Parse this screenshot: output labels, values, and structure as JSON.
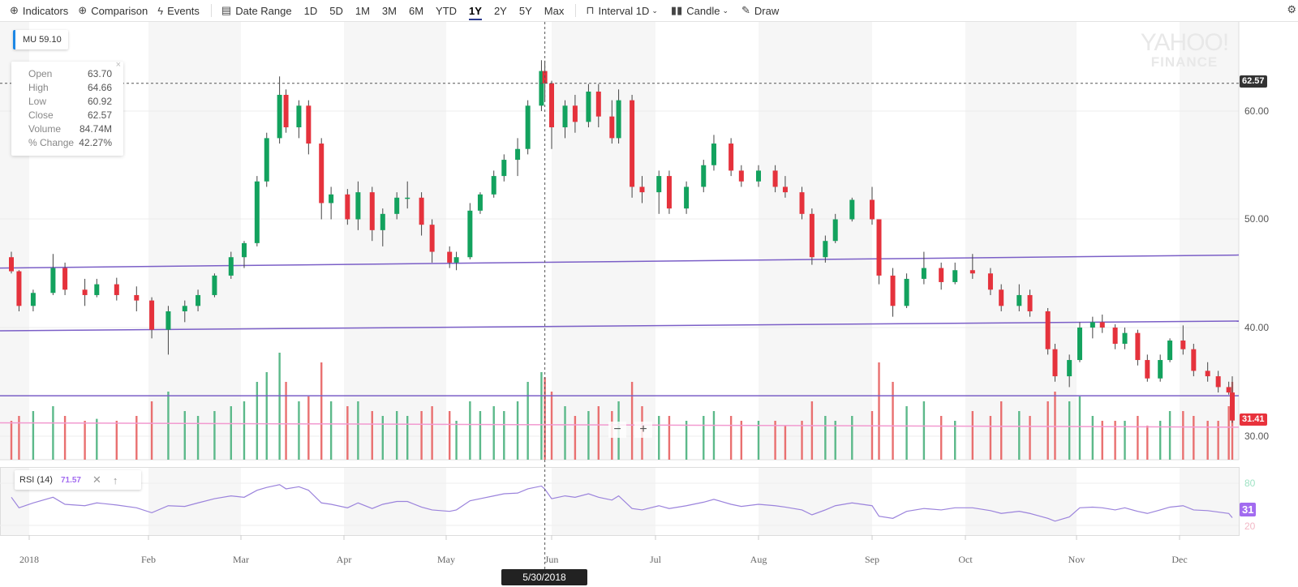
{
  "toolbar": {
    "indicators": "Indicators",
    "comparison": "Comparison",
    "events": "Events",
    "date_range": "Date Range",
    "ranges": [
      "1D",
      "5D",
      "1M",
      "3M",
      "6M",
      "YTD",
      "1Y",
      "2Y",
      "5Y",
      "Max"
    ],
    "active_range": "1Y",
    "interval_label": "Interval",
    "interval_value": "1D",
    "chart_type": "Candle",
    "draw": "Draw"
  },
  "ticker": {
    "symbol": "MU",
    "price": "59.10"
  },
  "tooltip": {
    "rows": [
      {
        "k": "Open",
        "v": "63.70"
      },
      {
        "k": "High",
        "v": "64.66"
      },
      {
        "k": "Low",
        "v": "60.92"
      },
      {
        "k": "Close",
        "v": "62.57"
      },
      {
        "k": "Volume",
        "v": "84.74M"
      },
      {
        "k": "% Change",
        "v": "42.27%"
      }
    ],
    "close": "×"
  },
  "watermark": {
    "line1": "YAHOO!",
    "line2": "FINANCE"
  },
  "badges": {
    "crosshair_price": "62.57",
    "current_price": "31.41",
    "rsi_value": "31"
  },
  "rsi_panel": {
    "label": "RSI (14)",
    "value": "71.57",
    "close": "✕",
    "move": "↑",
    "levels": [
      "80",
      "20"
    ]
  },
  "crosshair_date": "5/30/2018",
  "zoom": {
    "minus": "−",
    "plus": "+"
  },
  "colors": {
    "up": "#13a25e",
    "down": "#e5323c",
    "trendline": "#7b5fc7",
    "pink_line": "#f29ad0",
    "rsi_line": "#9b83dc",
    "accent": "#1e88e5"
  },
  "chart_data": {
    "type": "candlestick",
    "symbol": "MU",
    "y_ticks": [
      "60.00",
      "50.00",
      "40.00",
      "30.00"
    ],
    "ylim": [
      28,
      66
    ],
    "x_ticks": [
      "2018",
      "Feb",
      "Mar",
      "Apr",
      "May",
      "Jun",
      "Jul",
      "Aug",
      "Sep",
      "Oct",
      "Nov",
      "Dec"
    ],
    "grid": true,
    "columns": [
      "date",
      "open",
      "high",
      "low",
      "close",
      "volume_m",
      "rsi"
    ],
    "candles": [
      [
        "2017-12-26",
        46.5,
        47,
        45,
        45.2,
        40,
        60
      ],
      [
        "2017-12-29",
        45.2,
        45.3,
        41.5,
        42,
        45,
        45
      ],
      [
        "2018-01-03",
        42,
        43.5,
        41.5,
        43.2,
        50,
        52
      ],
      [
        "2018-01-08",
        43.2,
        46.8,
        43,
        45.5,
        55,
        60
      ],
      [
        "2018-01-11",
        45.5,
        46,
        43,
        43.5,
        45,
        50
      ],
      [
        "2018-01-16",
        43.5,
        44.5,
        42,
        43,
        40,
        48
      ],
      [
        "2018-01-19",
        43,
        44.5,
        42.8,
        44,
        42,
        52
      ],
      [
        "2018-01-24",
        44,
        44.6,
        42.5,
        43,
        40,
        49
      ],
      [
        "2018-01-29",
        43,
        43.8,
        41.5,
        42.5,
        45,
        45
      ],
      [
        "2018-02-02",
        42.5,
        42.8,
        39,
        39.8,
        60,
        38
      ],
      [
        "2018-02-07",
        39.8,
        42,
        37.5,
        41.5,
        70,
        48
      ],
      [
        "2018-02-12",
        41.5,
        42.5,
        40.5,
        42,
        50,
        47
      ],
      [
        "2018-02-16",
        42,
        43.5,
        41.5,
        43,
        45,
        52
      ],
      [
        "2018-02-21",
        43,
        45,
        42.8,
        44.8,
        50,
        58
      ],
      [
        "2018-02-26",
        44.8,
        47,
        44.5,
        46.5,
        55,
        62
      ],
      [
        "2018-03-02",
        46.5,
        48,
        45.5,
        47.8,
        60,
        60
      ],
      [
        "2018-03-06",
        47.8,
        54,
        47.5,
        53.5,
        80,
        70
      ],
      [
        "2018-03-09",
        53.5,
        58,
        53,
        57.5,
        90,
        74
      ],
      [
        "2018-03-13",
        57.5,
        63.2,
        57,
        61.5,
        110,
        78
      ],
      [
        "2018-03-15",
        61.5,
        62,
        58,
        58.5,
        80,
        72
      ],
      [
        "2018-03-19",
        58.5,
        61,
        57.5,
        60.5,
        60,
        75
      ],
      [
        "2018-03-22",
        60.5,
        61,
        56,
        57,
        65,
        70
      ],
      [
        "2018-03-26",
        57,
        57.5,
        50,
        51.5,
        100,
        52
      ],
      [
        "2018-03-29",
        51.5,
        53,
        50,
        52.3,
        60,
        50
      ],
      [
        "2018-04-03",
        52.3,
        52.8,
        49.5,
        50,
        55,
        45
      ],
      [
        "2018-04-06",
        50,
        53.5,
        49,
        52.5,
        60,
        52
      ],
      [
        "2018-04-10",
        52.5,
        53,
        48,
        49,
        50,
        44
      ],
      [
        "2018-04-13",
        49,
        51,
        47.5,
        50.5,
        45,
        50
      ],
      [
        "2018-04-17",
        50.5,
        52.5,
        50,
        52,
        50,
        54
      ],
      [
        "2018-04-20",
        52,
        53.5,
        51,
        52,
        45,
        54
      ],
      [
        "2018-04-24",
        52,
        52.5,
        48.5,
        49.5,
        50,
        46
      ],
      [
        "2018-04-27",
        49.5,
        50,
        46,
        47,
        55,
        42
      ],
      [
        "2018-05-02",
        47,
        47.5,
        45.5,
        46,
        50,
        40
      ],
      [
        "2018-05-04",
        46,
        47,
        45.3,
        46.5,
        40,
        42
      ],
      [
        "2018-05-08",
        46.5,
        51.5,
        46.3,
        50.8,
        60,
        55
      ],
      [
        "2018-05-11",
        50.8,
        52.5,
        50.5,
        52.3,
        50,
        58
      ],
      [
        "2018-05-15",
        52.3,
        54.5,
        52,
        54,
        55,
        62
      ],
      [
        "2018-05-18",
        54,
        56,
        53.5,
        55.5,
        50,
        65
      ],
      [
        "2018-05-22",
        55.5,
        57.5,
        54,
        56.5,
        60,
        66
      ],
      [
        "2018-05-25",
        56.5,
        61,
        56,
        60.5,
        80,
        72
      ],
      [
        "2018-05-29",
        60.5,
        64.7,
        60,
        63.7,
        90,
        76
      ],
      [
        "2018-05-30",
        63.7,
        64.66,
        60.92,
        62.57,
        84.74,
        71.57
      ],
      [
        "2018-06-01",
        62.57,
        62.8,
        56.5,
        58.5,
        70,
        58
      ],
      [
        "2018-06-05",
        58.5,
        61,
        57.5,
        60.5,
        55,
        62
      ],
      [
        "2018-06-08",
        60.5,
        61.5,
        58,
        59,
        45,
        60
      ],
      [
        "2018-06-12",
        59,
        62.5,
        58.5,
        61.8,
        50,
        65
      ],
      [
        "2018-06-15",
        61.8,
        62.5,
        58.5,
        59.5,
        55,
        60
      ],
      [
        "2018-06-19",
        59.5,
        61,
        57,
        57.5,
        50,
        56
      ],
      [
        "2018-06-21",
        57.5,
        62,
        57,
        61,
        60,
        62
      ],
      [
        "2018-06-25",
        61,
        61.5,
        52,
        53,
        80,
        44
      ],
      [
        "2018-06-28",
        53,
        54,
        51.5,
        52.5,
        55,
        42
      ],
      [
        "2018-07-03",
        52.5,
        54.5,
        50.5,
        54,
        45,
        48
      ],
      [
        "2018-07-06",
        54,
        54.5,
        50.5,
        51,
        45,
        44
      ],
      [
        "2018-07-11",
        51,
        53.5,
        50.5,
        53,
        40,
        48
      ],
      [
        "2018-07-16",
        53,
        55.5,
        52.5,
        55,
        45,
        53
      ],
      [
        "2018-07-19",
        55,
        57.8,
        54.5,
        57,
        50,
        57
      ],
      [
        "2018-07-24",
        57,
        57.5,
        54,
        54.5,
        45,
        50
      ],
      [
        "2018-07-27",
        54.5,
        55,
        53,
        53.5,
        40,
        47
      ],
      [
        "2018-08-01",
        53.5,
        55,
        53,
        54.5,
        40,
        50
      ],
      [
        "2018-08-06",
        54.5,
        55,
        52.5,
        53,
        40,
        48
      ],
      [
        "2018-08-09",
        53,
        54,
        52,
        52.5,
        35,
        46
      ],
      [
        "2018-08-14",
        52.5,
        53,
        50,
        50.5,
        40,
        42
      ],
      [
        "2018-08-17",
        50.5,
        51,
        45.8,
        46.5,
        60,
        35
      ],
      [
        "2018-08-21",
        46.5,
        48.5,
        46,
        48,
        45,
        42
      ],
      [
        "2018-08-24",
        48,
        50.5,
        47.8,
        50,
        40,
        48
      ],
      [
        "2018-08-29",
        50,
        52,
        49.8,
        51.8,
        45,
        52
      ],
      [
        "2018-09-04",
        51.8,
        53,
        49.5,
        50,
        50,
        48
      ],
      [
        "2018-09-06",
        50,
        50,
        44,
        44.8,
        100,
        33
      ],
      [
        "2018-09-10",
        44.8,
        45.5,
        41,
        42,
        80,
        30
      ],
      [
        "2018-09-14",
        42,
        45,
        41.8,
        44.5,
        55,
        40
      ],
      [
        "2018-09-19",
        44.5,
        47,
        44,
        45.5,
        60,
        44
      ],
      [
        "2018-09-24",
        45.5,
        46,
        43.5,
        44.2,
        45,
        42
      ],
      [
        "2018-09-28",
        44.2,
        46,
        44,
        45.3,
        40,
        45
      ],
      [
        "2018-10-03",
        45.3,
        46.8,
        44.5,
        45,
        50,
        45
      ],
      [
        "2018-10-08",
        45,
        45.5,
        43,
        43.5,
        45,
        41
      ],
      [
        "2018-10-11",
        43.5,
        44,
        41.5,
        42,
        60,
        37
      ],
      [
        "2018-10-16",
        42,
        44,
        41.5,
        43,
        50,
        40
      ],
      [
        "2018-10-19",
        43,
        43.5,
        41,
        41.5,
        45,
        37
      ],
      [
        "2018-10-24",
        41.5,
        41.8,
        37.5,
        38,
        60,
        30
      ],
      [
        "2018-10-26",
        38,
        38.5,
        35,
        35.5,
        70,
        26
      ],
      [
        "2018-10-30",
        35.5,
        37.5,
        34.5,
        37,
        60,
        32
      ],
      [
        "2018-11-02",
        37,
        40.5,
        36.8,
        40,
        65,
        45
      ],
      [
        "2018-11-06",
        40,
        41,
        39,
        40.5,
        45,
        46
      ],
      [
        "2018-11-09",
        40.5,
        41.2,
        39.5,
        40,
        40,
        45
      ],
      [
        "2018-11-13",
        40,
        40.3,
        38,
        38.5,
        40,
        42
      ],
      [
        "2018-11-16",
        38.5,
        40,
        38,
        39.5,
        40,
        45
      ],
      [
        "2018-11-20",
        39.5,
        39.8,
        36.5,
        37,
        45,
        40
      ],
      [
        "2018-11-23",
        37,
        37.5,
        35,
        35.3,
        35,
        37
      ],
      [
        "2018-11-27",
        35.3,
        37.5,
        35,
        37,
        40,
        42
      ],
      [
        "2018-11-30",
        37,
        39,
        36.8,
        38.8,
        50,
        46
      ],
      [
        "2018-12-04",
        38.8,
        40.2,
        37.5,
        38,
        50,
        48
      ],
      [
        "2018-12-07",
        38,
        38.5,
        35.5,
        36,
        45,
        42
      ],
      [
        "2018-12-11",
        36,
        36.8,
        35,
        35.5,
        40,
        41
      ],
      [
        "2018-12-14",
        35.5,
        36,
        34,
        34.5,
        40,
        39
      ],
      [
        "2018-12-17",
        34.5,
        35,
        33.8,
        34,
        55,
        37
      ],
      [
        "2018-12-18",
        34,
        35.5,
        31.2,
        31.41,
        80,
        31
      ]
    ],
    "trendlines": [
      {
        "start": [
          "2017-12-20",
          45.5
        ],
        "end": [
          "2018-12-20",
          46.7
        ],
        "color": "#7b5fc7"
      },
      {
        "start": [
          "2017-12-20",
          39.7
        ],
        "end": [
          "2018-12-20",
          40.6
        ],
        "color": "#7b5fc7"
      },
      {
        "start": [
          "2017-12-20",
          33.7
        ],
        "end": [
          "2018-12-20",
          33.7
        ],
        "color": "#7b5fc7"
      },
      {
        "start": [
          "2017-12-20",
          31.2
        ],
        "end": [
          "2018-12-20",
          30.8
        ],
        "color": "#f29ad0"
      }
    ],
    "crosshair": {
      "date": "2018-05-30",
      "price": 62.57
    }
  }
}
